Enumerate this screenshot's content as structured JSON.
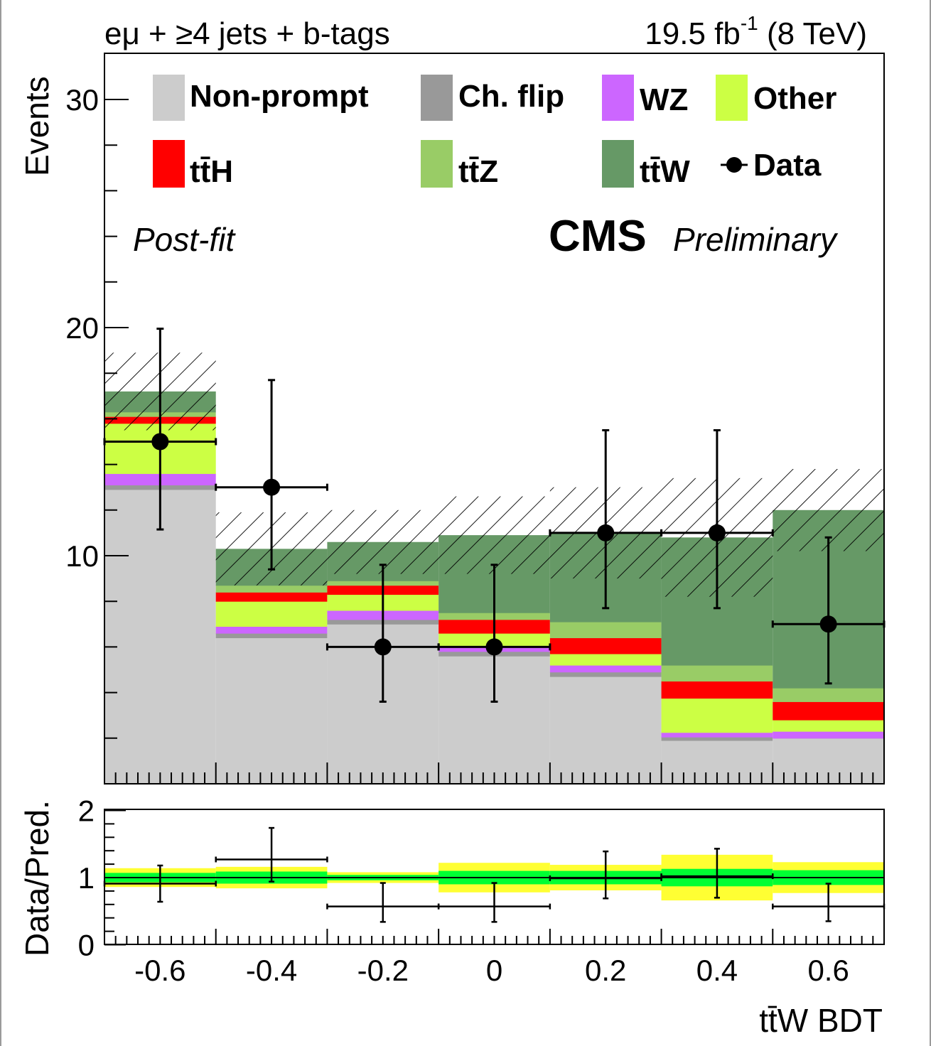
{
  "header": {
    "channel": "eμ + ≥4 jets + b-tags",
    "lumi_value": "19.5 fb",
    "lumi_exp": "-1",
    "energy": " (8 TeV)"
  },
  "annotations": {
    "cms": "CMS",
    "preliminary": "Preliminary",
    "postfit": "Post-fit"
  },
  "colors": {
    "nonprompt": "#cccccc",
    "chflip": "#999999",
    "wz": "#cc66ff",
    "other": "#ccff44",
    "ttH": "#ff0000",
    "ttZ": "#99cc66",
    "ttW": "#669966",
    "band_1sigma": "#00ff33",
    "band_2sigma": "#ffff33"
  },
  "chart_data": [
    {
      "type": "bar",
      "stacked": true,
      "ylabel": "Events",
      "xlim": [
        -0.7,
        0.7
      ],
      "ylim": [
        0,
        31
      ],
      "y_ticks": [
        10,
        20,
        30
      ],
      "x_edges": [
        -0.7,
        -0.5,
        -0.3,
        -0.1,
        0.1,
        0.3,
        0.5,
        0.7
      ],
      "legend_position": "top",
      "series": [
        {
          "name": "Non-prompt",
          "values": [
            12.9,
            6.4,
            7.0,
            5.6,
            4.7,
            1.9,
            2.0
          ]
        },
        {
          "name": "Ch. flip",
          "values": [
            0.2,
            0.2,
            0.2,
            0.2,
            0.2,
            0.15,
            0.0
          ]
        },
        {
          "name": "WZ",
          "values": [
            0.5,
            0.3,
            0.4,
            0.2,
            0.3,
            0.2,
            0.3
          ]
        },
        {
          "name": "Other",
          "values": [
            2.2,
            1.1,
            0.7,
            0.6,
            0.5,
            1.5,
            0.5
          ]
        },
        {
          "name": "tt̄H",
          "values": [
            0.3,
            0.4,
            0.4,
            0.6,
            0.7,
            0.75,
            0.8
          ]
        },
        {
          "name": "tt̄Z",
          "values": [
            0.2,
            0.3,
            0.2,
            0.3,
            0.7,
            0.7,
            0.6
          ]
        },
        {
          "name": "tt̄W",
          "values": [
            0.9,
            1.6,
            1.7,
            3.4,
            3.9,
            5.6,
            7.8
          ]
        }
      ],
      "uncertainty": [
        1.7,
        1.6,
        1.4,
        1.7,
        2.0,
        2.6,
        1.8
      ],
      "data": {
        "name": "Data",
        "x": [
          -0.6,
          -0.4,
          -0.2,
          0.0,
          0.2,
          0.4,
          0.6
        ],
        "y": [
          15,
          13,
          6,
          6,
          11,
          11,
          7
        ],
        "err_low": [
          3.85,
          3.6,
          2.4,
          2.4,
          3.3,
          3.3,
          2.6
        ],
        "err_high": [
          4.95,
          4.7,
          3.6,
          3.6,
          4.5,
          4.5,
          3.8
        ]
      }
    },
    {
      "type": "scatter",
      "ylabel": "Data/Pred.",
      "xlabel": "tt̄W BDT",
      "xlim": [
        -0.7,
        0.7
      ],
      "ylim": [
        0,
        2
      ],
      "x_ticks": [
        -0.6,
        -0.4,
        -0.2,
        0,
        0.2,
        0.4,
        0.6
      ],
      "x_tick_labels": [
        "-0.6",
        "-0.4",
        "-0.2",
        "0",
        "0.2",
        "0.4",
        "0.6"
      ],
      "y_ticks": [
        0,
        1,
        2
      ],
      "x_edges": [
        -0.7,
        -0.5,
        -0.3,
        -0.1,
        0.1,
        0.3,
        0.5,
        0.7
      ],
      "ratio": [
        0.91,
        1.27,
        0.57,
        0.57,
        0.99,
        1.02,
        0.57
      ],
      "ratio_err_low": [
        0.27,
        0.33,
        0.23,
        0.23,
        0.3,
        0.32,
        0.22
      ],
      "ratio_err_high": [
        0.27,
        0.47,
        0.35,
        0.35,
        0.4,
        0.41,
        0.34
      ],
      "band_1sigma": [
        0.07,
        0.09,
        0.04,
        0.1,
        0.1,
        0.13,
        0.11
      ],
      "band_2sigma": [
        0.14,
        0.16,
        0.08,
        0.22,
        0.19,
        0.34,
        0.23
      ]
    }
  ]
}
